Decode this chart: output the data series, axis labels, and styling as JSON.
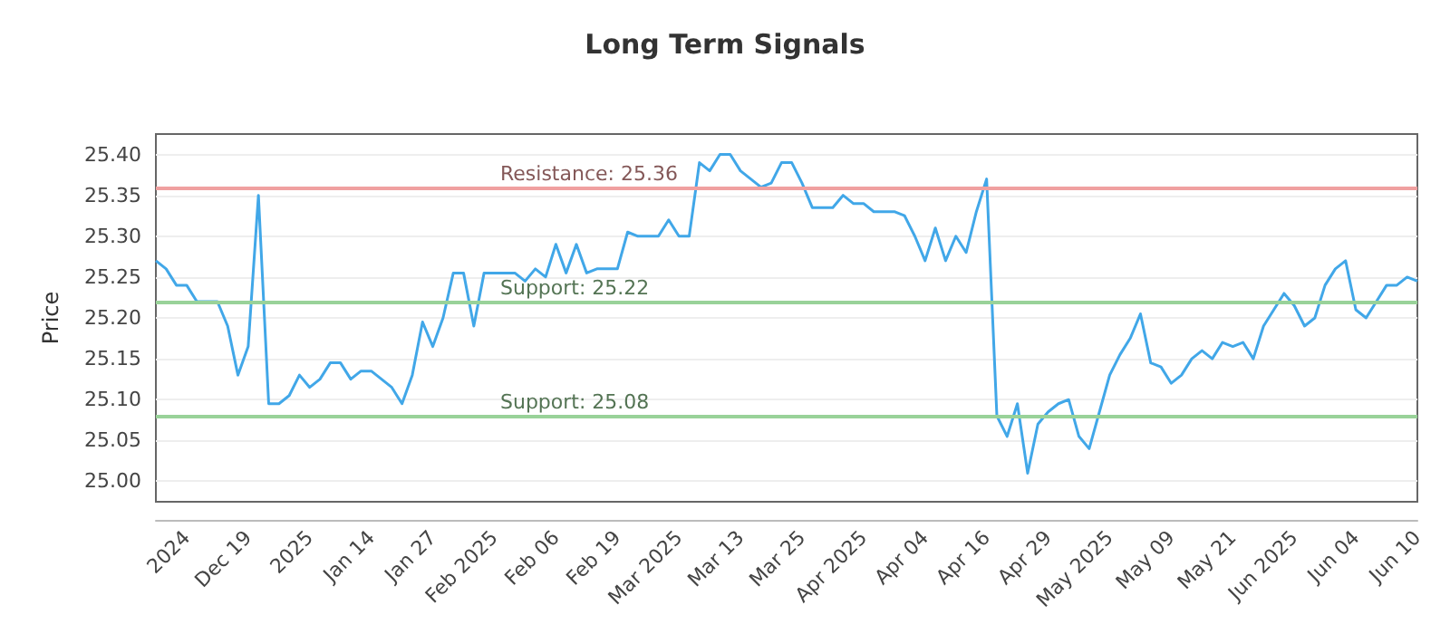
{
  "chart_data": {
    "type": "line",
    "title": "Long Term Signals",
    "ylabel": "Price",
    "categories": [
      null,
      null,
      null,
      "2024",
      null,
      null,
      null,
      null,
      null,
      "Dec 19",
      null,
      null,
      null,
      null,
      null,
      "2025",
      null,
      null,
      null,
      null,
      null,
      "Jan 14",
      null,
      null,
      null,
      null,
      null,
      "Jan 27",
      null,
      null,
      null,
      null,
      null,
      "Feb 2025",
      null,
      null,
      null,
      null,
      null,
      "Feb 06",
      null,
      null,
      null,
      null,
      null,
      "Feb 19",
      null,
      null,
      null,
      null,
      null,
      "Mar 2025",
      null,
      null,
      null,
      null,
      null,
      "Mar 13",
      null,
      null,
      null,
      null,
      null,
      "Mar 25",
      null,
      null,
      null,
      null,
      null,
      "Apr 2025",
      null,
      null,
      null,
      null,
      null,
      "Apr 04",
      null,
      null,
      null,
      null,
      null,
      "Apr 16",
      null,
      null,
      null,
      null,
      null,
      "Apr 29",
      null,
      null,
      null,
      null,
      null,
      "May 2025",
      null,
      null,
      null,
      null,
      null,
      "May 09",
      null,
      null,
      null,
      null,
      null,
      "May 21",
      null,
      null,
      null,
      null,
      null,
      "Jun 2025",
      null,
      null,
      null,
      null,
      null,
      "Jun 04",
      null,
      null,
      null,
      null,
      null,
      "Jun 10"
    ],
    "series": [
      {
        "color": "#41a7e8",
        "values": [
          25.27,
          25.26,
          25.24,
          25.24,
          25.22,
          25.22,
          25.22,
          25.19,
          25.13,
          25.165,
          25.35,
          25.095,
          25.095,
          25.105,
          25.13,
          25.115,
          25.125,
          25.145,
          25.145,
          25.125,
          25.135,
          25.135,
          25.125,
          25.115,
          25.095,
          25.13,
          25.195,
          25.165,
          25.2,
          25.255,
          25.255,
          25.19,
          25.255,
          25.255,
          25.255,
          25.255,
          25.245,
          25.26,
          25.25,
          25.29,
          25.255,
          25.29,
          25.255,
          25.26,
          25.26,
          25.26,
          25.305,
          25.3,
          25.3,
          25.3,
          25.32,
          25.3,
          25.3,
          25.39,
          25.38,
          25.4,
          25.4,
          25.38,
          25.37,
          25.36,
          25.365,
          25.39,
          25.39,
          25.365,
          25.335,
          25.335,
          25.335,
          25.35,
          25.34,
          25.34,
          25.33,
          25.33,
          25.33,
          25.325,
          25.3,
          25.27,
          25.31,
          25.27,
          25.3,
          25.28,
          25.33,
          25.37,
          25.08,
          25.055,
          25.095,
          25.01,
          25.07,
          25.085,
          25.095,
          25.1,
          25.055,
          25.04,
          25.085,
          25.13,
          25.155,
          25.175,
          25.205,
          25.145,
          25.14,
          25.12,
          25.13,
          25.15,
          25.16,
          25.15,
          25.17,
          25.165,
          25.17,
          25.15,
          25.19,
          25.21,
          25.23,
          25.215,
          25.19,
          25.2,
          25.24,
          25.26,
          25.27,
          25.21,
          25.2,
          25.22,
          25.24,
          25.24,
          25.25,
          25.245
        ]
      }
    ],
    "ylim": [
      24.975,
      25.425
    ],
    "yticks": [
      {
        "value": 25,
        "label": "25.00"
      },
      {
        "value": 25.05,
        "label": "25.05"
      },
      {
        "value": 25.1,
        "label": "25.10"
      },
      {
        "value": 25.15,
        "label": "25.15"
      },
      {
        "value": 25.2,
        "label": "25.20"
      },
      {
        "value": 25.25,
        "label": "25.25"
      },
      {
        "value": 25.3,
        "label": "25.30"
      },
      {
        "value": 25.35,
        "label": "25.35"
      },
      {
        "value": 25.4,
        "label": "25.40"
      }
    ],
    "ref_lines": [
      {
        "axis": "y",
        "value": 25.36,
        "label": "Resistance: 25.36",
        "color": "#f0a0a0"
      },
      {
        "axis": "y",
        "value": 25.22,
        "label": "Support: 25.22",
        "color": "#99d299"
      },
      {
        "axis": "y",
        "value": 25.08,
        "label": "Support: 25.08",
        "color": "#99d299"
      }
    ],
    "grid": "y",
    "marker": "none",
    "line_style": "solid"
  }
}
